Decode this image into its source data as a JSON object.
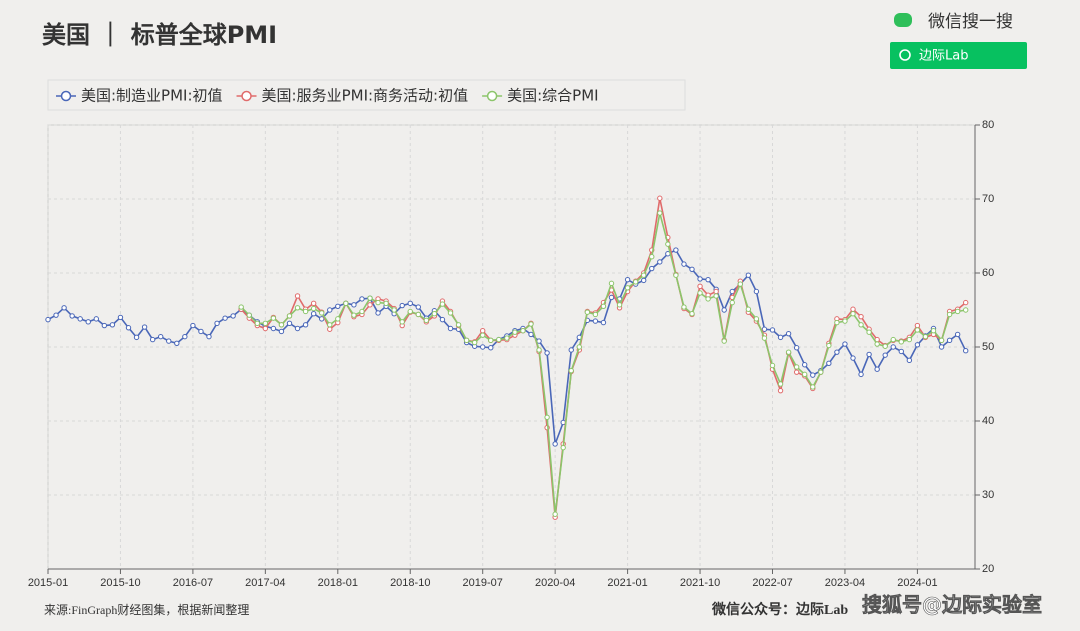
{
  "chart_data": {
    "type": "line",
    "title": "美国 ｜ 标普全球PMI",
    "source": "来源:FinGraph财经图集，根据新闻整理",
    "footer": "微信公众号：边际Lab",
    "watermark": "搜狐号@边际实验室",
    "search_label": "微信搜一搜",
    "search_button": "边际Lab",
    "grid": true,
    "legend": "top-left",
    "categories": [
      "2015-01",
      null,
      null,
      null,
      null,
      null,
      null,
      null,
      null,
      "2015-10",
      null,
      null,
      null,
      null,
      null,
      null,
      null,
      null,
      "2016-07",
      null,
      null,
      null,
      null,
      null,
      null,
      null,
      null,
      "2017-04",
      null,
      null,
      null,
      null,
      null,
      null,
      null,
      null,
      "2018-01",
      null,
      null,
      null,
      null,
      null,
      null,
      null,
      null,
      "2018-10",
      null,
      null,
      null,
      null,
      null,
      null,
      null,
      null,
      "2019-07",
      null,
      null,
      null,
      null,
      null,
      null,
      null,
      null,
      "2020-04",
      null,
      null,
      null,
      null,
      null,
      null,
      null,
      null,
      "2021-01",
      null,
      null,
      null,
      null,
      null,
      null,
      null,
      null,
      "2021-10",
      null,
      null,
      null,
      null,
      null,
      null,
      null,
      null,
      "2022-07",
      null,
      null,
      null,
      null,
      null,
      null,
      null,
      null,
      "2023-04",
      null,
      null,
      null,
      null,
      null,
      null,
      null,
      null,
      "2024-01",
      null,
      null,
      null,
      null,
      null,
      null
    ],
    "ylim": [
      20,
      80
    ],
    "yticks": [
      20,
      30,
      40,
      50,
      60,
      70,
      80
    ],
    "series": [
      {
        "name": "美国:制造业PMI:初值",
        "color": "#4a67b8",
        "values": [
          53.7,
          54.3,
          55.3,
          54.2,
          53.8,
          53.4,
          53.8,
          52.9,
          53.0,
          54.0,
          52.6,
          51.3,
          52.7,
          51.0,
          51.4,
          50.8,
          50.5,
          51.4,
          52.9,
          52.1,
          51.4,
          53.2,
          53.9,
          54.2,
          55.1,
          54.3,
          53.4,
          52.8,
          52.5,
          52.1,
          53.2,
          52.5,
          53.0,
          54.5,
          53.8,
          55.0,
          55.5,
          55.9,
          55.7,
          56.5,
          56.6,
          54.6,
          55.5,
          54.5,
          55.6,
          55.9,
          55.4,
          53.9,
          54.9,
          53.7,
          52.5,
          52.4,
          50.6,
          50.1,
          50.0,
          49.9,
          51.0,
          51.5,
          52.2,
          52.5,
          51.7,
          50.8,
          49.2,
          36.9,
          39.8,
          49.6,
          51.3,
          53.6,
          53.5,
          53.3,
          56.7,
          56.5,
          59.1,
          58.5,
          59.0,
          60.6,
          61.5,
          62.6,
          63.1,
          61.2,
          60.5,
          59.2,
          59.1,
          57.8,
          55.0,
          57.5,
          58.5,
          59.7,
          57.5,
          52.4,
          52.3,
          51.3,
          51.8,
          49.9,
          47.6,
          46.2,
          46.8,
          47.8,
          49.3,
          50.4,
          48.5,
          46.3,
          49.0,
          47.0,
          48.9,
          50.0,
          49.4,
          48.2,
          50.3,
          51.5,
          52.5,
          50.0,
          50.9,
          51.7,
          49.5
        ]
      },
      {
        "name": "美国:服务业PMI:商务活动:初值",
        "color": "#e06b6b",
        "values": [
          null,
          null,
          null,
          null,
          null,
          null,
          null,
          null,
          null,
          null,
          null,
          null,
          null,
          null,
          null,
          null,
          null,
          null,
          null,
          null,
          null,
          null,
          null,
          null,
          55.1,
          53.9,
          52.9,
          52.5,
          54.0,
          53.0,
          54.2,
          56.9,
          55.1,
          55.9,
          54.7,
          52.4,
          53.3,
          55.9,
          54.1,
          54.4,
          55.7,
          56.5,
          56.2,
          55.2,
          52.9,
          54.7,
          54.4,
          53.4,
          54.2,
          56.2,
          54.8,
          52.9,
          50.9,
          50.7,
          52.2,
          50.9,
          50.9,
          51.0,
          51.6,
          52.2,
          53.2,
          49.4,
          39.1,
          27.0,
          36.9,
          46.7,
          49.6,
          54.8,
          54.6,
          56.0,
          57.7,
          55.3,
          57.5,
          58.9,
          60.0,
          63.1,
          70.1,
          64.8,
          59.8,
          55.2,
          54.4,
          58.2,
          57.0,
          57.5,
          50.9,
          56.7,
          58.9,
          54.7,
          53.5,
          51.6,
          47.0,
          44.1,
          49.2,
          46.6,
          46.1,
          44.4,
          46.6,
          50.5,
          53.8,
          53.7,
          55.1,
          54.1,
          52.4,
          51.0,
          50.2,
          50.9,
          50.8,
          51.3,
          52.9,
          51.3,
          51.7,
          50.9,
          54.8,
          55.1,
          56.0
        ]
      },
      {
        "name": "美国:综合PMI",
        "color": "#8cc56b",
        "values": [
          null,
          null,
          null,
          null,
          null,
          null,
          null,
          null,
          null,
          null,
          null,
          null,
          null,
          null,
          null,
          null,
          null,
          null,
          null,
          null,
          null,
          null,
          null,
          null,
          55.4,
          54.3,
          53.2,
          53.2,
          53.9,
          53.0,
          54.2,
          55.3,
          54.8,
          55.2,
          54.6,
          53.0,
          53.8,
          55.9,
          54.3,
          54.8,
          56.6,
          56.0,
          55.9,
          55.0,
          53.4,
          54.8,
          54.4,
          53.6,
          54.5,
          55.8,
          54.6,
          53.0,
          50.9,
          50.6,
          51.6,
          50.9,
          51.0,
          51.2,
          52.0,
          52.2,
          53.1,
          49.6,
          40.5,
          27.4,
          36.4,
          46.8,
          50.0,
          54.7,
          54.4,
          55.5,
          58.6,
          55.7,
          58.0,
          58.8,
          59.7,
          62.2,
          68.1,
          63.9,
          59.7,
          55.4,
          54.5,
          57.3,
          56.5,
          56.9,
          50.8,
          56.0,
          58.5,
          55.1,
          53.8,
          51.2,
          47.5,
          45.0,
          49.3,
          47.3,
          46.3,
          44.6,
          46.6,
          50.2,
          53.3,
          53.5,
          54.5,
          53.0,
          52.0,
          50.4,
          50.1,
          51.0,
          50.7,
          51.0,
          52.3,
          51.4,
          52.2,
          50.9,
          54.4,
          54.8,
          55.0
        ]
      }
    ]
  }
}
